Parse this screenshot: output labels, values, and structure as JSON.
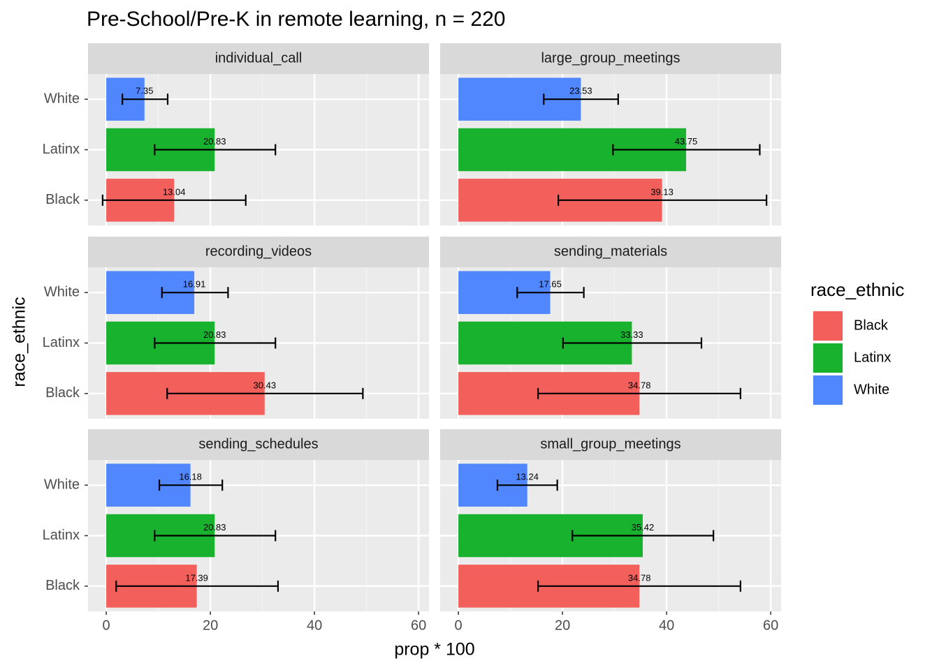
{
  "chart_data": {
    "type": "bar",
    "orientation": "horizontal",
    "title": "Pre-School/Pre-K in remote learning, n = 220",
    "x_label": "prop * 100",
    "y_label": "race_ethnic",
    "legend_title": "race_ethnic",
    "categories": [
      "Black",
      "Latinx",
      "White"
    ],
    "colors": [
      "#f35f5b",
      "#18b22f",
      "#5087ff"
    ],
    "xlim": [
      -3.5,
      62
    ],
    "xticks": [
      0,
      20,
      40,
      60
    ],
    "grid": true,
    "facets": [
      {
        "title": "individual_call",
        "values": [
          13.04,
          20.83,
          7.35
        ],
        "ci": [
          [
            -0.7,
            26.8
          ],
          [
            9.3,
            32.5
          ],
          [
            3.1,
            11.8
          ]
        ]
      },
      {
        "title": "large_group_meetings",
        "values": [
          39.13,
          43.75,
          23.53
        ],
        "ci": [
          [
            19.2,
            59.2
          ],
          [
            29.7,
            57.9
          ],
          [
            16.4,
            30.7
          ]
        ]
      },
      {
        "title": "recording_videos",
        "values": [
          30.43,
          20.83,
          16.91
        ],
        "ci": [
          [
            11.7,
            49.3
          ],
          [
            9.3,
            32.5
          ],
          [
            10.7,
            23.4
          ]
        ]
      },
      {
        "title": "sending_materials",
        "values": [
          34.78,
          33.33,
          17.65
        ],
        "ci": [
          [
            15.3,
            54.2
          ],
          [
            20.1,
            46.7
          ],
          [
            11.3,
            24.1
          ]
        ]
      },
      {
        "title": "sending_schedules",
        "values": [
          17.39,
          20.83,
          16.18
        ],
        "ci": [
          [
            1.9,
            33.0
          ],
          [
            9.3,
            32.5
          ],
          [
            10.2,
            22.3
          ]
        ]
      },
      {
        "title": "small_group_meetings",
        "values": [
          34.78,
          35.42,
          13.24
        ],
        "ci": [
          [
            15.3,
            54.2
          ],
          [
            21.9,
            49.0
          ],
          [
            7.5,
            19.0
          ]
        ]
      }
    ]
  }
}
